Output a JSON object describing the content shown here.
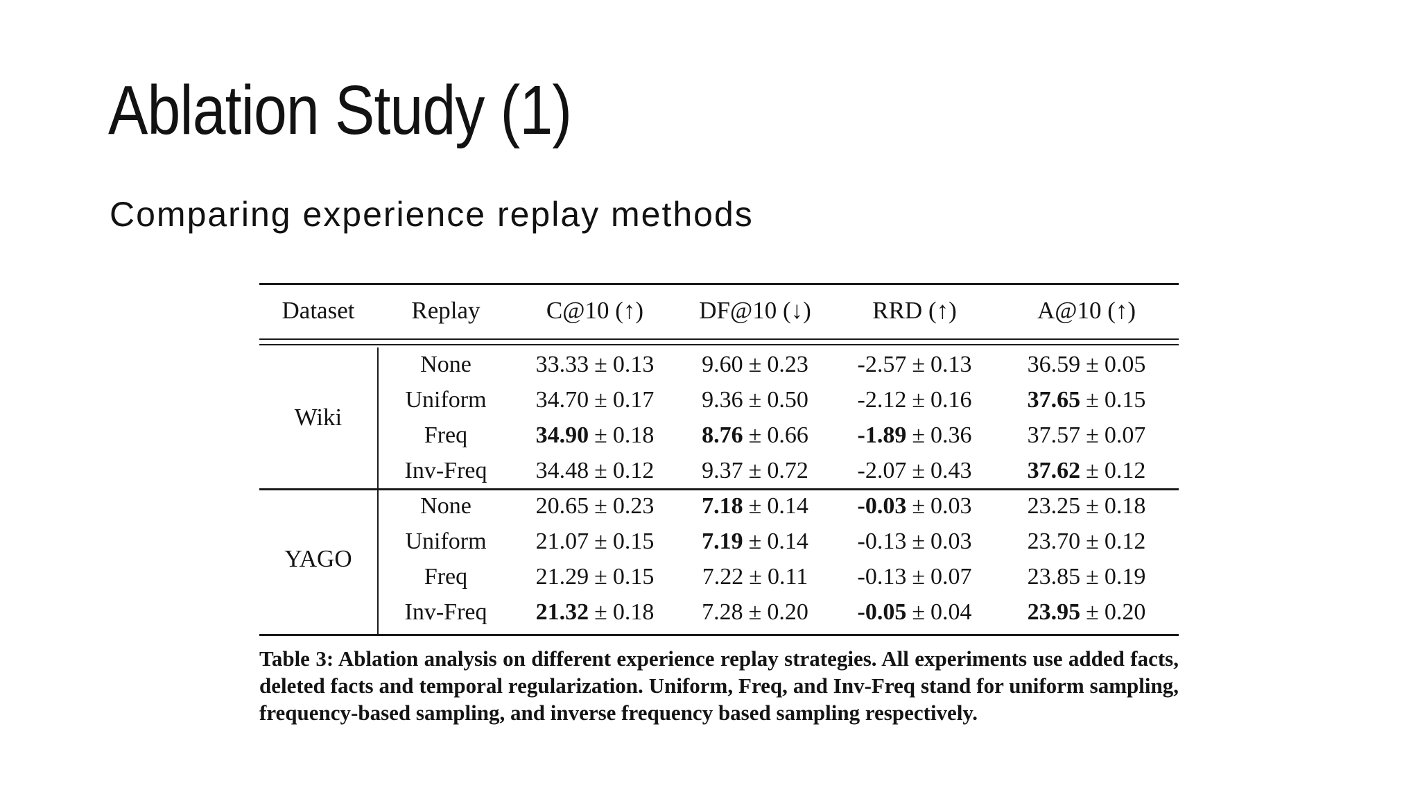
{
  "slide": {
    "title": "Ablation Study (1)",
    "subtitle": "Comparing experience replay methods"
  },
  "table": {
    "pm": "±",
    "headers": [
      "Dataset",
      "Replay",
      "C@10 (↑)",
      "DF@10 (↓)",
      "RRD (↑)",
      "A@10 (↑)"
    ],
    "sections": [
      {
        "dataset": "Wiki",
        "rows": [
          {
            "replay": "None",
            "values": [
              {
                "m": "33.33",
                "s": "0.13",
                "b": false
              },
              {
                "m": "9.60",
                "s": "0.23",
                "b": false
              },
              {
                "m": "-2.57",
                "s": "0.13",
                "b": false
              },
              {
                "m": "36.59",
                "s": "0.05",
                "b": false
              }
            ]
          },
          {
            "replay": "Uniform",
            "values": [
              {
                "m": "34.70",
                "s": "0.17",
                "b": false
              },
              {
                "m": "9.36",
                "s": "0.50",
                "b": false
              },
              {
                "m": "-2.12",
                "s": "0.16",
                "b": false
              },
              {
                "m": "37.65",
                "s": "0.15",
                "b": true
              }
            ]
          },
          {
            "replay": "Freq",
            "values": [
              {
                "m": "34.90",
                "s": "0.18",
                "b": true
              },
              {
                "m": "8.76",
                "s": "0.66",
                "b": true
              },
              {
                "m": "-1.89",
                "s": "0.36",
                "b": true
              },
              {
                "m": "37.57",
                "s": "0.07",
                "b": false
              }
            ]
          },
          {
            "replay": "Inv-Freq",
            "values": [
              {
                "m": "34.48",
                "s": "0.12",
                "b": false
              },
              {
                "m": "9.37",
                "s": "0.72",
                "b": false
              },
              {
                "m": "-2.07",
                "s": "0.43",
                "b": false
              },
              {
                "m": "37.62",
                "s": "0.12",
                "b": true
              }
            ]
          }
        ]
      },
      {
        "dataset": "YAGO",
        "rows": [
          {
            "replay": "None",
            "values": [
              {
                "m": "20.65",
                "s": "0.23",
                "b": false
              },
              {
                "m": "7.18",
                "s": "0.14",
                "b": true
              },
              {
                "m": "-0.03",
                "s": "0.03",
                "b": true
              },
              {
                "m": "23.25",
                "s": "0.18",
                "b": false
              }
            ]
          },
          {
            "replay": "Uniform",
            "values": [
              {
                "m": "21.07",
                "s": "0.15",
                "b": false
              },
              {
                "m": "7.19",
                "s": "0.14",
                "b": true
              },
              {
                "m": "-0.13",
                "s": "0.03",
                "b": false
              },
              {
                "m": "23.70",
                "s": "0.12",
                "b": false
              }
            ]
          },
          {
            "replay": "Freq",
            "values": [
              {
                "m": "21.29",
                "s": "0.15",
                "b": false
              },
              {
                "m": "7.22",
                "s": "0.11",
                "b": false
              },
              {
                "m": "-0.13",
                "s": "0.07",
                "b": false
              },
              {
                "m": "23.85",
                "s": "0.19",
                "b": false
              }
            ]
          },
          {
            "replay": "Inv-Freq",
            "values": [
              {
                "m": "21.32",
                "s": "0.18",
                "b": true
              },
              {
                "m": "7.28",
                "s": "0.20",
                "b": false
              },
              {
                "m": "-0.05",
                "s": "0.04",
                "b": true
              },
              {
                "m": "23.95",
                "s": "0.20",
                "b": true
              }
            ]
          }
        ]
      }
    ]
  },
  "caption": "Table 3: Ablation analysis on different experience replay strategies. All experiments use added facts, deleted facts and temporal regularization. Uniform, Freq, and Inv-Freq stand for uniform sampling, frequency-based sampling, and inverse frequency based sampling respectively."
}
